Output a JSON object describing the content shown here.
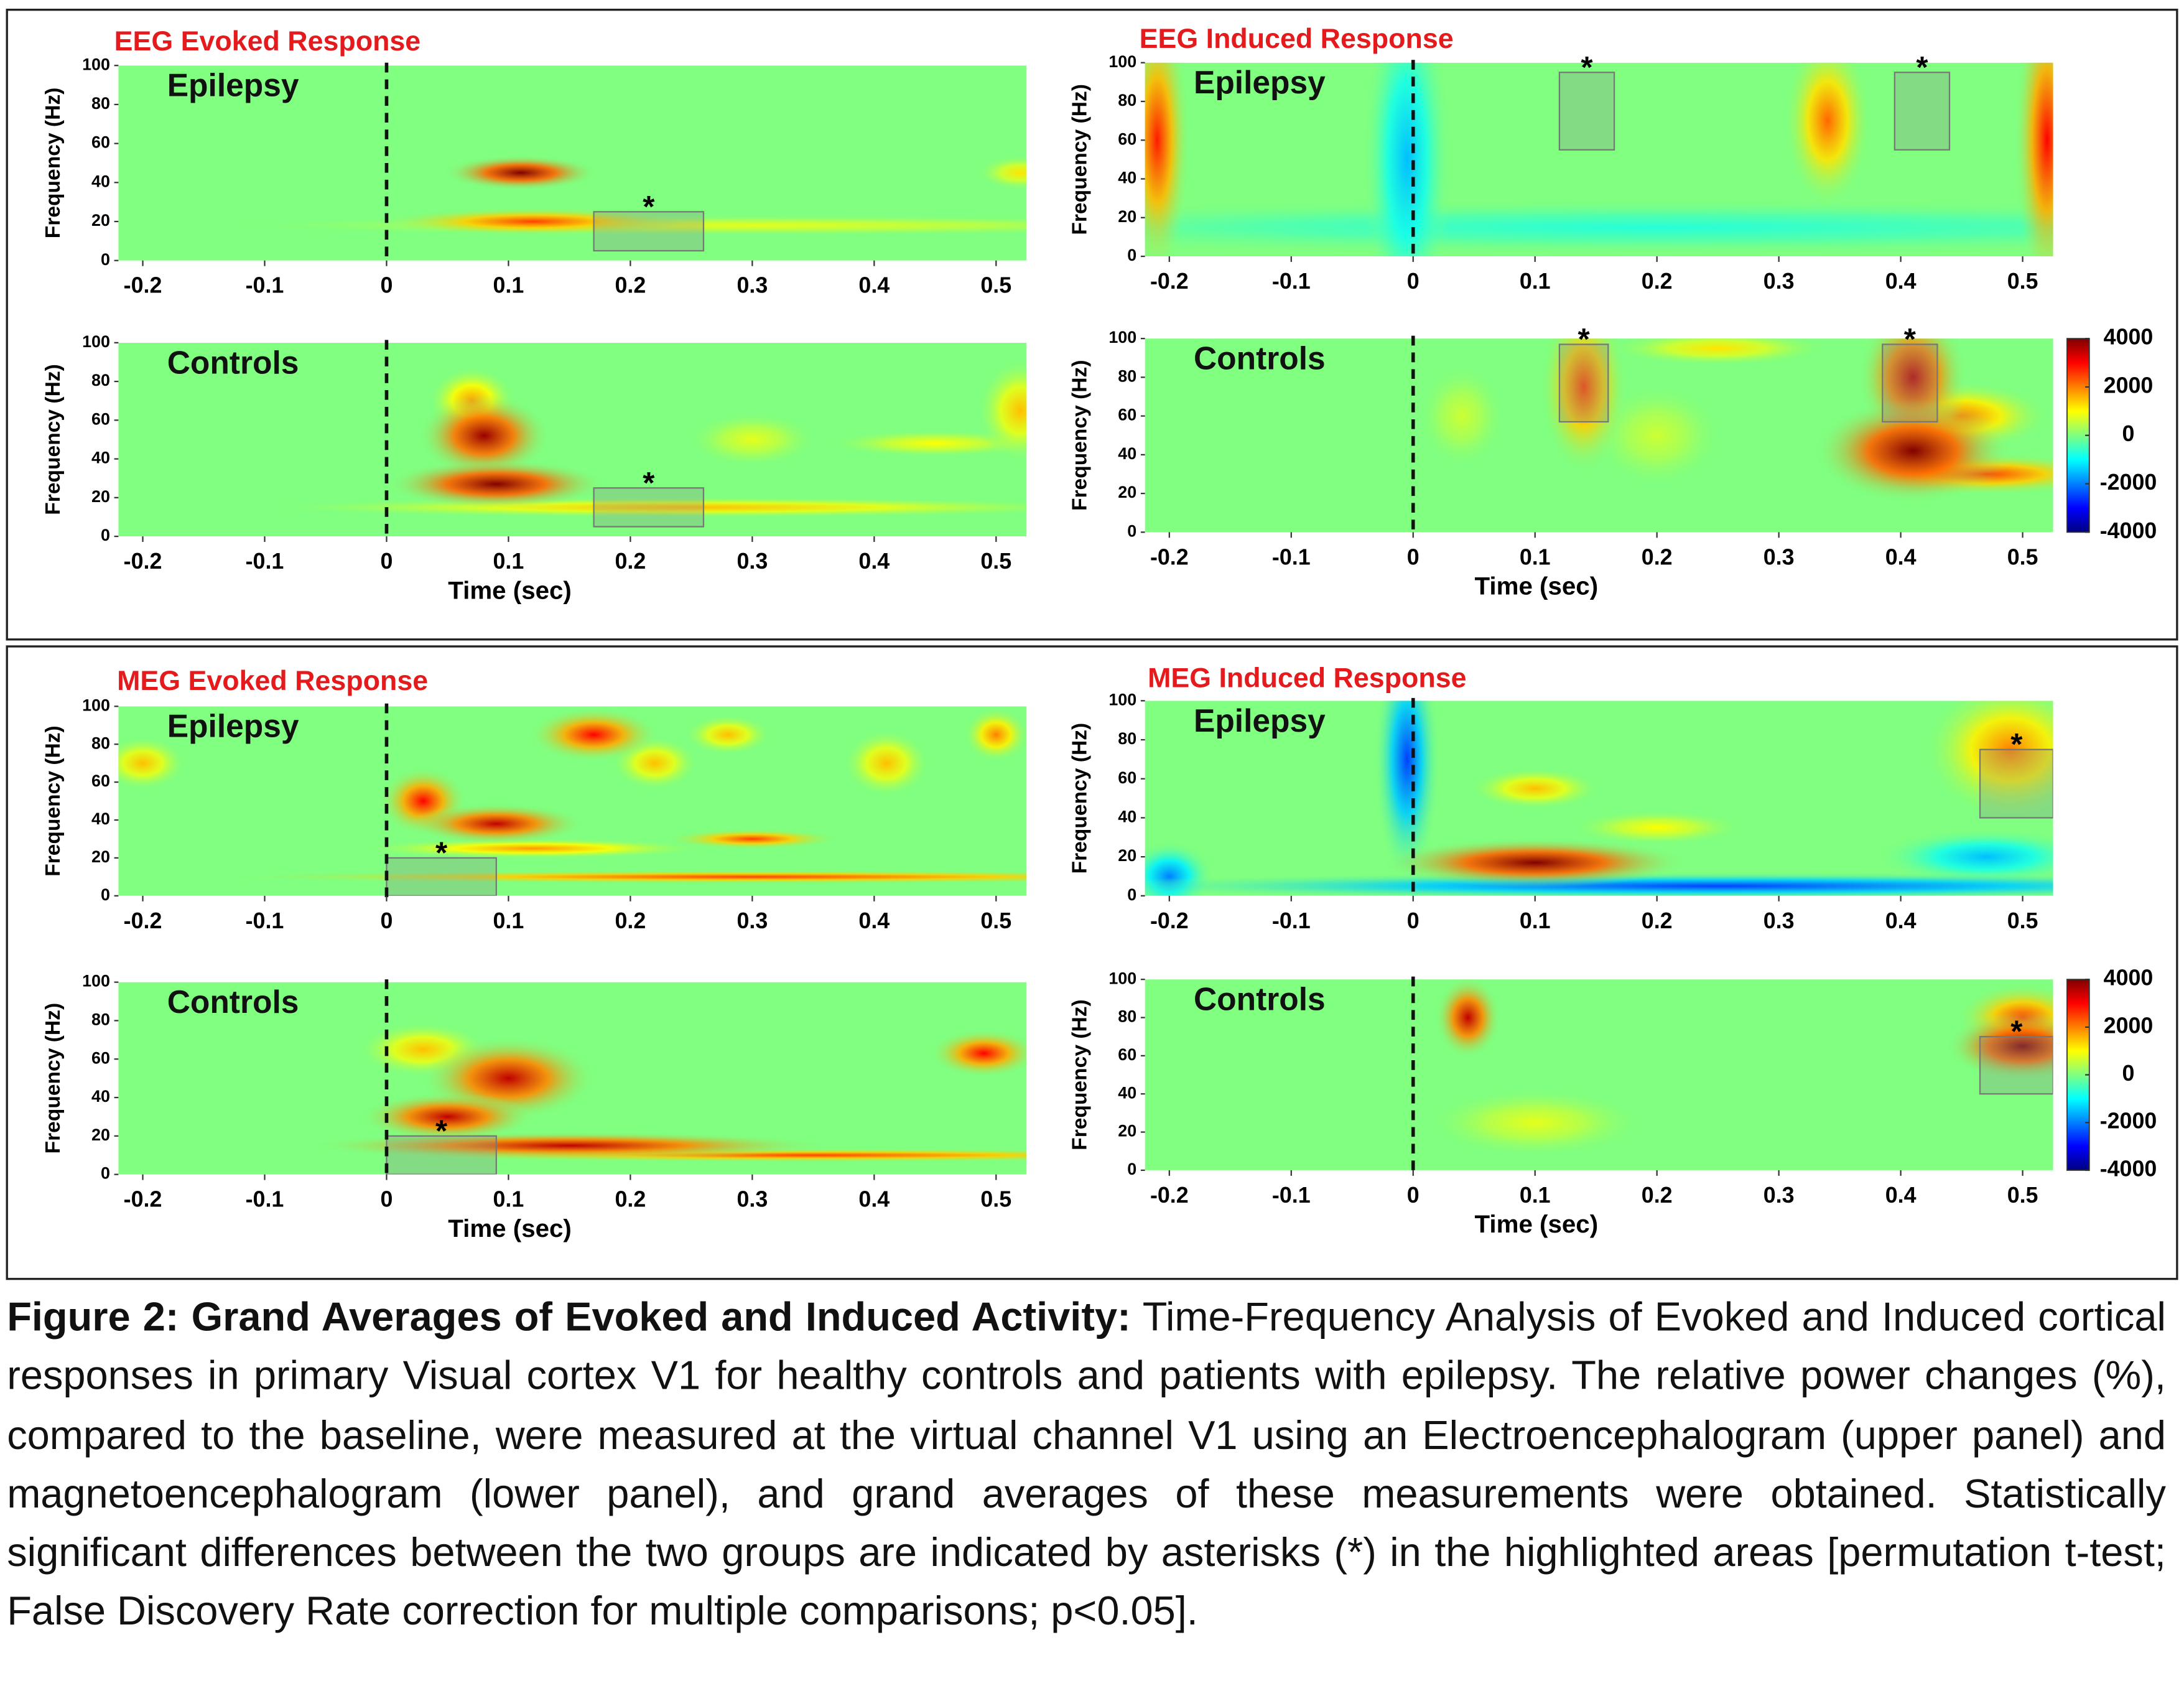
{
  "section_titles": [
    "EEG Evoked Response",
    "EEG Induced Response",
    "MEG Evoked Response",
    "MEG Induced Response"
  ],
  "chart_data": [
    {
      "type": "heatmap",
      "label": "Epilepsy",
      "ylabel": "Frequency (Hz)",
      "xlim": [
        -0.22,
        0.525
      ],
      "ylim": [
        0,
        100
      ],
      "xticks": [
        -0.2,
        -0.1,
        0,
        0.1,
        0.2,
        0.3,
        0.4,
        0.5
      ],
      "yticks": [
        0,
        20,
        40,
        60,
        80,
        100
      ],
      "vline": 0,
      "clim": [
        -4000,
        4000
      ],
      "blobs": [
        {
          "x": 0.3,
          "y": 18,
          "sx": 0.25,
          "sy": 3,
          "value": 800
        },
        {
          "x": 0.12,
          "y": 20,
          "sx": 0.07,
          "sy": 4,
          "value": 2500
        },
        {
          "x": 0.11,
          "y": 45,
          "sx": 0.035,
          "sy": 5,
          "value": 4000
        },
        {
          "x": 0.52,
          "y": 45,
          "sx": 0.02,
          "sy": 5,
          "value": 1200
        }
      ],
      "boxes": [
        {
          "x": [
            0.17,
            0.26
          ],
          "y": [
            5,
            25
          ],
          "label": "*"
        }
      ]
    },
    {
      "type": "heatmap",
      "label": "Controls",
      "ylabel": "Frequency (Hz)",
      "xlabel": "Time (sec)",
      "xlim": [
        -0.22,
        0.525
      ],
      "ylim": [
        0,
        100
      ],
      "xticks": [
        -0.2,
        -0.1,
        0,
        0.1,
        0.2,
        0.3,
        0.4,
        0.5
      ],
      "yticks": [
        0,
        20,
        40,
        60,
        80,
        100
      ],
      "vline": 0,
      "clim": [
        -4000,
        4000
      ],
      "blobs": [
        {
          "x": 0.25,
          "y": 15,
          "sx": 0.2,
          "sy": 3,
          "value": 1500
        },
        {
          "x": 0.45,
          "y": 48,
          "sx": 0.05,
          "sy": 4,
          "value": 1000
        },
        {
          "x": 0.3,
          "y": 50,
          "sx": 0.03,
          "sy": 8,
          "value": 800
        },
        {
          "x": 0.52,
          "y": 65,
          "sx": 0.02,
          "sy": 15,
          "value": 1500
        },
        {
          "x": 0.07,
          "y": 70,
          "sx": 0.02,
          "sy": 10,
          "value": 1800
        },
        {
          "x": 0.08,
          "y": 52,
          "sx": 0.03,
          "sy": 12,
          "value": 3800
        },
        {
          "x": 0.09,
          "y": 27,
          "sx": 0.05,
          "sy": 7,
          "value": 4000
        }
      ],
      "boxes": [
        {
          "x": [
            0.17,
            0.26
          ],
          "y": [
            5,
            25
          ],
          "label": "*"
        }
      ]
    },
    {
      "type": "heatmap",
      "label": "Epilepsy",
      "ylabel": "Frequency (Hz)",
      "xlim": [
        -0.22,
        0.525
      ],
      "ylim": [
        0,
        100
      ],
      "xticks": [
        -0.2,
        -0.1,
        0,
        0.1,
        0.2,
        0.3,
        0.4,
        0.5
      ],
      "yticks": [
        0,
        20,
        40,
        60,
        80,
        100
      ],
      "vline": 0,
      "clim": [
        -4000,
        4000
      ],
      "blobs": [
        {
          "x": 0.2,
          "y": 15,
          "sx": 0.4,
          "sy": 8,
          "value": -700
        },
        {
          "x": -0.005,
          "y": 50,
          "sx": 0.02,
          "sy": 50,
          "value": -1500
        },
        {
          "x": -0.21,
          "y": 60,
          "sx": 0.015,
          "sy": 40,
          "value": 2800
        },
        {
          "x": 0.52,
          "y": 60,
          "sx": 0.015,
          "sy": 45,
          "value": 3000
        },
        {
          "x": 0.34,
          "y": 70,
          "sx": 0.02,
          "sy": 25,
          "value": 2200
        }
      ],
      "boxes": [
        {
          "x": [
            0.12,
            0.165
          ],
          "y": [
            55,
            95
          ],
          "label": "*"
        },
        {
          "x": [
            0.395,
            0.44
          ],
          "y": [
            55,
            95
          ],
          "label": "*"
        }
      ]
    },
    {
      "type": "heatmap",
      "label": "Controls",
      "ylabel": "Frequency (Hz)",
      "xlabel": "Time (sec)",
      "xlim": [
        -0.22,
        0.525
      ],
      "ylim": [
        0,
        100
      ],
      "xticks": [
        -0.2,
        -0.1,
        0,
        0.1,
        0.2,
        0.3,
        0.4,
        0.5
      ],
      "yticks": [
        0,
        20,
        40,
        60,
        80,
        100
      ],
      "vline": 0,
      "clim": [
        -4000,
        4000
      ],
      "cticks": [
        4000,
        2000,
        0,
        -2000,
        -4000
      ],
      "blobs": [
        {
          "x": 0.04,
          "y": 60,
          "sx": 0.02,
          "sy": 15,
          "value": 600
        },
        {
          "x": 0.2,
          "y": 50,
          "sx": 0.03,
          "sy": 15,
          "value": 600
        },
        {
          "x": 0.25,
          "y": 95,
          "sx": 0.05,
          "sy": 5,
          "value": 1200
        },
        {
          "x": 0.14,
          "y": 75,
          "sx": 0.02,
          "sy": 25,
          "value": 2500
        },
        {
          "x": 0.47,
          "y": 30,
          "sx": 0.06,
          "sy": 6,
          "value": 2500
        },
        {
          "x": 0.45,
          "y": 60,
          "sx": 0.04,
          "sy": 10,
          "value": 2000
        },
        {
          "x": 0.41,
          "y": 80,
          "sx": 0.025,
          "sy": 20,
          "value": 3500
        },
        {
          "x": 0.41,
          "y": 42,
          "sx": 0.045,
          "sy": 15,
          "value": 4000
        }
      ],
      "boxes": [
        {
          "x": [
            0.12,
            0.16
          ],
          "y": [
            57,
            97
          ],
          "label": "*"
        },
        {
          "x": [
            0.385,
            0.43
          ],
          "y": [
            57,
            97
          ],
          "label": "*"
        }
      ]
    },
    {
      "type": "heatmap",
      "label": "Epilepsy",
      "ylabel": "Frequency (Hz)",
      "xlim": [
        -0.22,
        0.525
      ],
      "ylim": [
        0,
        100
      ],
      "xticks": [
        -0.2,
        -0.1,
        0,
        0.1,
        0.2,
        0.3,
        0.4,
        0.5
      ],
      "yticks": [
        0,
        20,
        40,
        60,
        80,
        100
      ],
      "vline": 0,
      "clim": [
        -4000,
        4000
      ],
      "blobs": [
        {
          "x": -0.2,
          "y": 70,
          "sx": 0.02,
          "sy": 8,
          "value": 1500
        },
        {
          "x": 0.41,
          "y": 70,
          "sx": 0.02,
          "sy": 10,
          "value": 1500
        },
        {
          "x": 0.22,
          "y": 70,
          "sx": 0.02,
          "sy": 8,
          "value": 1500
        },
        {
          "x": 0.28,
          "y": 85,
          "sx": 0.02,
          "sy": 6,
          "value": 1500
        },
        {
          "x": 0.5,
          "y": 85,
          "sx": 0.015,
          "sy": 8,
          "value": 2000
        },
        {
          "x": 0.12,
          "y": 25,
          "sx": 0.08,
          "sy": 3,
          "value": 1800
        },
        {
          "x": 0.3,
          "y": 10,
          "sx": 0.25,
          "sy": 2,
          "value": 2500
        },
        {
          "x": 0.3,
          "y": 30,
          "sx": 0.04,
          "sy": 3,
          "value": 2500
        },
        {
          "x": 0.17,
          "y": 85,
          "sx": 0.03,
          "sy": 8,
          "value": 3000
        },
        {
          "x": 0.03,
          "y": 50,
          "sx": 0.02,
          "sy": 10,
          "value": 3000
        },
        {
          "x": 0.09,
          "y": 38,
          "sx": 0.04,
          "sy": 6,
          "value": 3500
        }
      ],
      "boxes": [
        {
          "x": [
            0,
            0.09
          ],
          "y": [
            0,
            20
          ],
          "label": "*"
        }
      ]
    },
    {
      "type": "heatmap",
      "label": "Controls",
      "ylabel": "Frequency (Hz)",
      "xlabel": "Time (sec)",
      "xlim": [
        -0.22,
        0.525
      ],
      "ylim": [
        0,
        100
      ],
      "xticks": [
        -0.2,
        -0.1,
        0,
        0.1,
        0.2,
        0.3,
        0.4,
        0.5
      ],
      "yticks": [
        0,
        20,
        40,
        60,
        80,
        100
      ],
      "vline": 0,
      "clim": [
        -4000,
        4000
      ],
      "blobs": [
        {
          "x": 0.03,
          "y": 65,
          "sx": 0.03,
          "sy": 8,
          "value": 1500
        },
        {
          "x": 0.35,
          "y": 10,
          "sx": 0.2,
          "sy": 2,
          "value": 2500
        },
        {
          "x": 0.49,
          "y": 63,
          "sx": 0.025,
          "sy": 7,
          "value": 3000
        },
        {
          "x": 0.1,
          "y": 50,
          "sx": 0.04,
          "sy": 12,
          "value": 3500
        },
        {
          "x": 0.05,
          "y": 30,
          "sx": 0.04,
          "sy": 7,
          "value": 3500
        },
        {
          "x": 0.15,
          "y": 15,
          "sx": 0.12,
          "sy": 4,
          "value": 3500
        }
      ],
      "boxes": [
        {
          "x": [
            0,
            0.09
          ],
          "y": [
            0,
            20
          ],
          "label": "*"
        }
      ]
    },
    {
      "type": "heatmap",
      "label": "Epilepsy",
      "ylabel": "Frequency (Hz)",
      "xlim": [
        -0.22,
        0.525
      ],
      "ylim": [
        0,
        100
      ],
      "xticks": [
        -0.2,
        -0.1,
        0,
        0.1,
        0.2,
        0.3,
        0.4,
        0.5
      ],
      "yticks": [
        0,
        20,
        40,
        60,
        80,
        100
      ],
      "vline": 0,
      "clim": [
        -4000,
        4000
      ],
      "blobs": [
        {
          "x": 0.2,
          "y": 35,
          "sx": 0.04,
          "sy": 5,
          "value": 1000
        },
        {
          "x": 0.1,
          "y": 55,
          "sx": 0.03,
          "sy": 6,
          "value": 1500
        },
        {
          "x": 0.49,
          "y": 75,
          "sx": 0.04,
          "sy": 20,
          "value": 2000
        },
        {
          "x": 0.47,
          "y": 20,
          "sx": 0.05,
          "sy": 8,
          "value": -1500
        },
        {
          "x": -0.2,
          "y": 10,
          "sx": 0.02,
          "sy": 10,
          "value": -2000
        },
        {
          "x": 0.25,
          "y": 5,
          "sx": 0.3,
          "sy": 4,
          "value": -2500
        },
        {
          "x": -0.005,
          "y": 70,
          "sx": 0.015,
          "sy": 35,
          "value": -2500
        },
        {
          "x": 0.1,
          "y": 17,
          "sx": 0.07,
          "sy": 7,
          "value": 4000
        }
      ],
      "boxes": [
        {
          "x": [
            0.465,
            0.525
          ],
          "y": [
            40,
            75
          ],
          "label": "*"
        }
      ]
    },
    {
      "type": "heatmap",
      "label": "Controls",
      "ylabel": "Frequency (Hz)",
      "xlabel": "Time (sec)",
      "xlim": [
        -0.22,
        0.525
      ],
      "ylim": [
        0,
        100
      ],
      "xticks": [
        -0.2,
        -0.1,
        0,
        0.1,
        0.2,
        0.3,
        0.4,
        0.5
      ],
      "yticks": [
        0,
        20,
        40,
        60,
        80,
        100
      ],
      "vline": 0,
      "clim": [
        -4000,
        4000
      ],
      "cticks": [
        4000,
        2000,
        0,
        -2000,
        -4000
      ],
      "blobs": [
        {
          "x": 0.1,
          "y": 25,
          "sx": 0.05,
          "sy": 10,
          "value": 800
        },
        {
          "x": 0.5,
          "y": 80,
          "sx": 0.03,
          "sy": 10,
          "value": 2500
        },
        {
          "x": 0.045,
          "y": 80,
          "sx": 0.015,
          "sy": 12,
          "value": 3500
        },
        {
          "x": 0.5,
          "y": 65,
          "sx": 0.035,
          "sy": 10,
          "value": 4000
        }
      ],
      "boxes": [
        {
          "x": [
            0.465,
            0.525
          ],
          "y": [
            40,
            70
          ],
          "label": "*"
        }
      ]
    }
  ],
  "caption": {
    "bold": "Figure 2: Grand Averages of Evoked and Induced Activity:",
    "text": "Time-Frequency Analysis of Evoked and Induced cortical responses in primary Visual cortex V1 for healthy controls and patients with epilepsy. The relative power changes (%), compared to the baseline, were measured at the virtual channel V1 using an Electroencephalogram (upper panel) and magnetoencephalogram (lower panel), and grand averages of these measurements were obtained. Statistically significant differences between the two groups are indicated by asterisks (*) in the highlighted areas [permutation t-test; False Discovery Rate correction for multiple comparisons; p<0.05]."
  }
}
